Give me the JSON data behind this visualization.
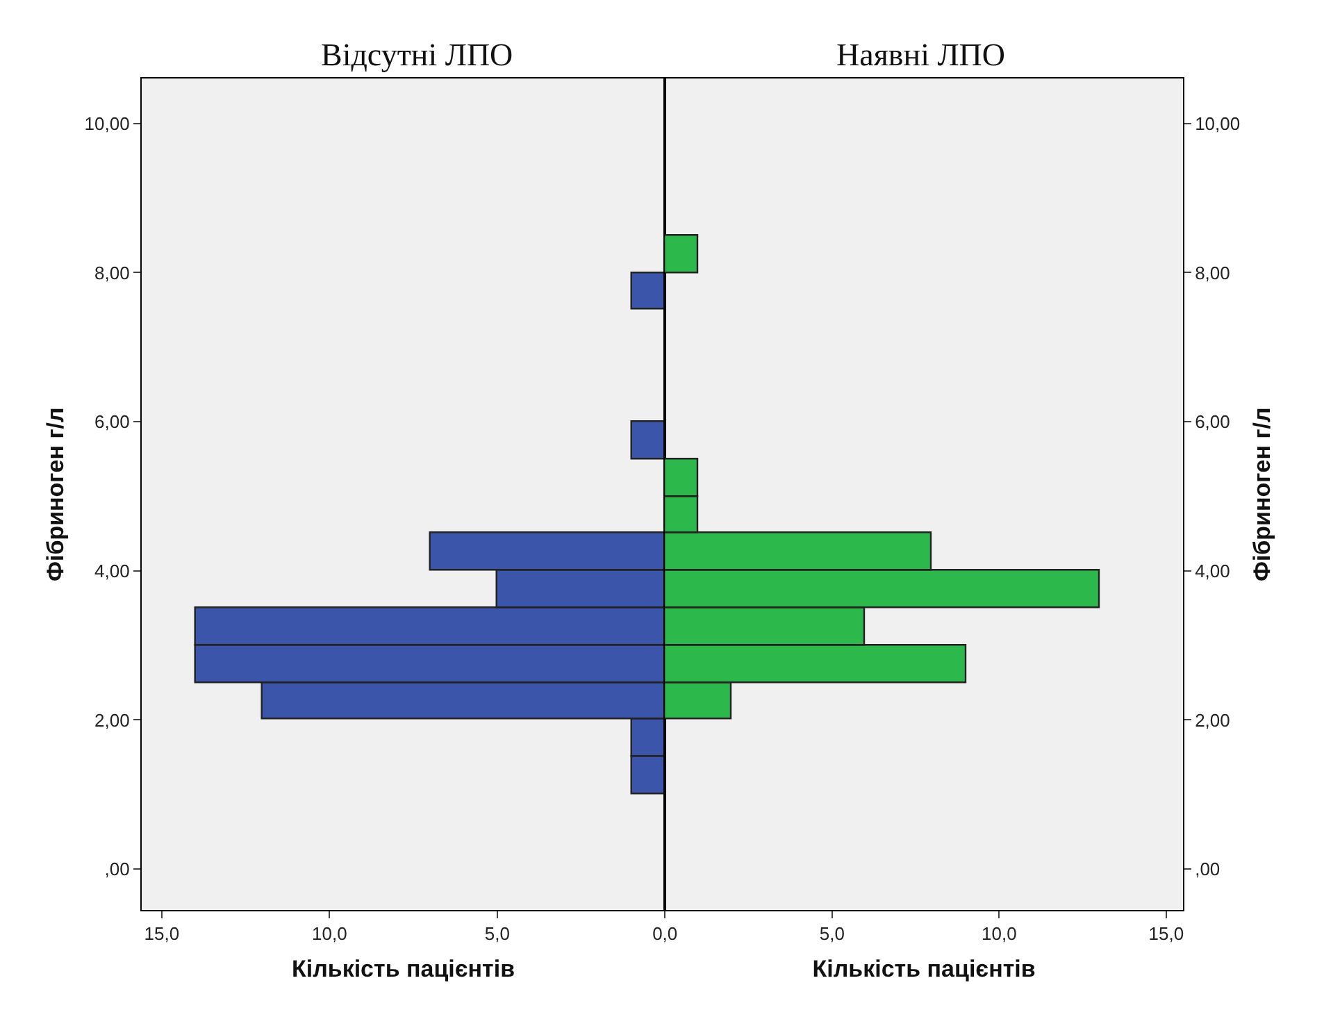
{
  "chart_data": [
    {
      "type": "histogram",
      "orientation": "horizontal",
      "title": "Відсутні ЛПО",
      "xlabel": "Кількість пацієнтів",
      "ylabel": "Фібриноген г/л",
      "bins": [
        1.0,
        1.5,
        2.0,
        2.5,
        3.0,
        3.5,
        4.0,
        4.5,
        5.0,
        5.5,
        6.0,
        6.5,
        7.0,
        7.5,
        8.0
      ],
      "color": "#3a55a9",
      "values": [
        1,
        1,
        12,
        14,
        14,
        5,
        7,
        0,
        0,
        1,
        0,
        0,
        0,
        1
      ],
      "xlim": [
        15.6,
        0
      ],
      "xticks": [
        {
          "value": 15,
          "label": "15,0"
        },
        {
          "value": 10,
          "label": "10,0"
        },
        {
          "value": 5,
          "label": "5,0"
        },
        {
          "value": 0,
          "label": "0,0"
        }
      ],
      "ylim": [
        -0.55,
        10.6
      ],
      "yticks": [
        {
          "value": 0,
          "label": ",00"
        },
        {
          "value": 2,
          "label": "2,00"
        },
        {
          "value": 4,
          "label": "4,00"
        },
        {
          "value": 6,
          "label": "6,00"
        },
        {
          "value": 8,
          "label": "8,00"
        },
        {
          "value": 10,
          "label": "10,00"
        }
      ]
    },
    {
      "type": "histogram",
      "orientation": "horizontal",
      "title": "Наявні ЛПО",
      "xlabel": "Кількість пацієнтів",
      "ylabel": "Фібриноген г/л",
      "bins": [
        2.0,
        2.5,
        3.0,
        3.5,
        4.0,
        4.5,
        5.0,
        5.5,
        6.0,
        6.5,
        7.0,
        7.5,
        8.0,
        8.5
      ],
      "color": "#2db84b",
      "values": [
        2,
        9,
        6,
        13,
        8,
        1,
        1,
        0,
        0,
        0,
        0,
        0,
        1
      ],
      "xlim": [
        0,
        15.5
      ],
      "xticks": [
        {
          "value": 0,
          "label": null
        },
        {
          "value": 5,
          "label": "5,0"
        },
        {
          "value": 10,
          "label": "10,0"
        },
        {
          "value": 15,
          "label": "15,0"
        }
      ],
      "ylim": [
        -0.55,
        10.6
      ],
      "yticks": [
        {
          "value": 0,
          "label": ",00"
        },
        {
          "value": 2,
          "label": "2,00"
        },
        {
          "value": 4,
          "label": "4,00"
        },
        {
          "value": 6,
          "label": "6,00"
        },
        {
          "value": 8,
          "label": "8,00"
        },
        {
          "value": 10,
          "label": "10,00"
        }
      ]
    }
  ]
}
